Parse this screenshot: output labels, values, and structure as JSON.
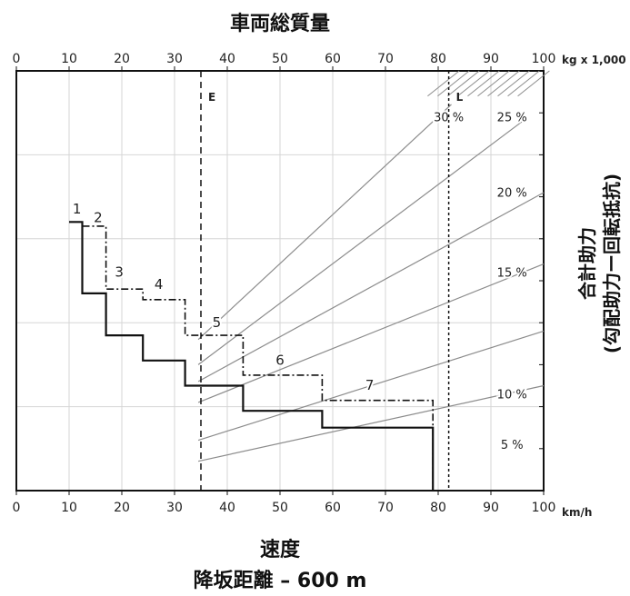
{
  "chart_data": {
    "type": "line",
    "title": "車両総質量",
    "top_axis": {
      "ticks": [
        "0",
        "10",
        "20",
        "30",
        "40",
        "50",
        "60",
        "70",
        "80",
        "90",
        "100"
      ],
      "unit": "kg x 1,000"
    },
    "x_axis": {
      "ticks": [
        "0",
        "10",
        "20",
        "30",
        "40",
        "50",
        "60",
        "70",
        "80",
        "90",
        "100"
      ],
      "unit": "km/h",
      "range": [
        0,
        100
      ]
    },
    "xlabel": "速度",
    "subtitle": "降坂距離 – 600 m",
    "ylabel_line1": "合計助力",
    "ylabel_line2": "(勾配助力ー回転抵抗)",
    "y_range": [
      0,
      100
    ],
    "grid": true,
    "markers": [
      {
        "label": "E",
        "x": 35
      },
      {
        "label": "L",
        "x": 82
      }
    ],
    "grade_lines": [
      {
        "label": "30 %",
        "x0": 34.5,
        "y0": 36,
        "x1": 82.5,
        "y1": 92
      },
      {
        "label": "25 %",
        "x0": 34.5,
        "y0": 30,
        "x1": 96,
        "y1": 88
      },
      {
        "label": "20 %",
        "x0": 34.5,
        "y0": 26,
        "x1": 100,
        "y1": 71
      },
      {
        "label": "15 %",
        "x0": 34.5,
        "y0": 21,
        "x1": 100,
        "y1": 54
      },
      {
        "label": "10 %",
        "x0": 34.5,
        "y0": 12,
        "x1": 100,
        "y1": 38
      },
      {
        "label": "5 %",
        "x0": 34.5,
        "y0": 7,
        "x1": 100,
        "y1": 25
      }
    ],
    "grade_label_positions": [
      {
        "label": "30 %",
        "x": 82,
        "y": 88
      },
      {
        "label": "25 %",
        "x": 94,
        "y": 88
      },
      {
        "label": "20 %",
        "x": 94,
        "y": 70
      },
      {
        "label": "15 %",
        "x": 94,
        "y": 51
      },
      {
        "label": "10 %",
        "x": 94,
        "y": 22
      },
      {
        "label": "5 %",
        "x": 94,
        "y": 10
      }
    ],
    "series": [
      {
        "name": "solid",
        "style": "solid",
        "points": [
          [
            10,
            64
          ],
          [
            12.5,
            64
          ],
          [
            12.5,
            47
          ],
          [
            17,
            47
          ],
          [
            17,
            37
          ],
          [
            24,
            37
          ],
          [
            24,
            31
          ],
          [
            32,
            31
          ],
          [
            32,
            25
          ],
          [
            43,
            25
          ],
          [
            43,
            19
          ],
          [
            58,
            19
          ],
          [
            58,
            15
          ],
          [
            79,
            15
          ],
          [
            79,
            0
          ]
        ]
      },
      {
        "name": "dashdot",
        "style": "dashdot",
        "points": [
          [
            12.5,
            63
          ],
          [
            17,
            63
          ],
          [
            17,
            48
          ],
          [
            24,
            48
          ],
          [
            24,
            45.5
          ],
          [
            32,
            45.5
          ],
          [
            32,
            37
          ],
          [
            43,
            37
          ],
          [
            43,
            27.5
          ],
          [
            58,
            27.5
          ],
          [
            58,
            21.5
          ],
          [
            79,
            21.5
          ],
          [
            79,
            0
          ]
        ]
      }
    ],
    "gear_labels": [
      {
        "label": "1",
        "x": 11.5,
        "y": 66
      },
      {
        "label": "2",
        "x": 15.5,
        "y": 64
      },
      {
        "label": "3",
        "x": 19.5,
        "y": 51
      },
      {
        "label": "4",
        "x": 27,
        "y": 48
      },
      {
        "label": "5",
        "x": 38,
        "y": 39
      },
      {
        "label": "6",
        "x": 50,
        "y": 30
      },
      {
        "label": "7",
        "x": 67,
        "y": 24
      }
    ]
  }
}
